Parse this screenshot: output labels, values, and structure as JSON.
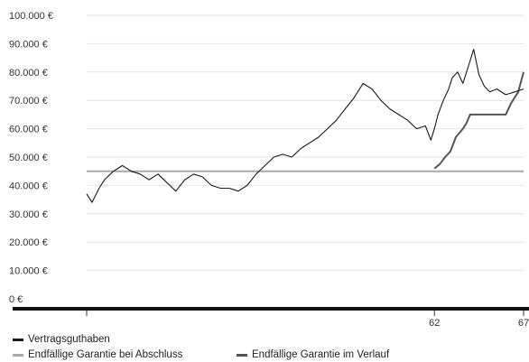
{
  "chart_data": {
    "type": "line",
    "ylim": [
      0,
      100000
    ],
    "y_ticks": [
      {
        "value": 100000,
        "label": "100.000 €"
      },
      {
        "value": 90000,
        "label": "90.000 €"
      },
      {
        "value": 80000,
        "label": "80.000 €"
      },
      {
        "value": 70000,
        "label": "70.000 €"
      },
      {
        "value": 60000,
        "label": "60.000 €"
      },
      {
        "value": 50000,
        "label": "50.000 €"
      },
      {
        "value": 40000,
        "label": "40.000 €"
      },
      {
        "value": 30000,
        "label": "30.000 €"
      },
      {
        "value": 20000,
        "label": "20.000 €"
      },
      {
        "value": 10000,
        "label": "10.000 €"
      },
      {
        "value": 0,
        "label": "0 €"
      }
    ],
    "xlim": [
      42.5,
      67
    ],
    "x_ticks": [
      {
        "value": 42.5,
        "label": ""
      },
      {
        "value": 62,
        "label": "62"
      },
      {
        "value": 67,
        "label": "67"
      }
    ],
    "grid": true,
    "legend_position": "bottom",
    "series": [
      {
        "name": "Vertragsguthaben",
        "color": "#1a1a1a",
        "x": [
          42.5,
          42.8,
          43.2,
          43.5,
          44.0,
          44.5,
          45.0,
          45.5,
          46.0,
          46.5,
          47.0,
          47.5,
          48.0,
          48.5,
          49.0,
          49.5,
          50.0,
          50.5,
          51.0,
          51.5,
          52.0,
          52.5,
          53.0,
          53.5,
          54.0,
          54.5,
          55.0,
          55.5,
          56.0,
          56.5,
          57.0,
          57.5,
          58.0,
          58.5,
          59.0,
          59.5,
          60.0,
          60.5,
          61.0,
          61.5,
          61.8,
          62.0,
          62.2,
          62.5,
          62.8,
          63.0,
          63.3,
          63.6,
          63.9,
          64.2,
          64.5,
          64.8,
          65.1,
          65.5,
          66.0,
          66.5,
          67.0
        ],
        "values": [
          37000,
          34000,
          39000,
          42000,
          45000,
          47000,
          45000,
          44000,
          42000,
          44000,
          41000,
          38000,
          42000,
          44000,
          43000,
          40000,
          39000,
          39000,
          38000,
          40000,
          44000,
          47000,
          50000,
          51000,
          50000,
          53000,
          55000,
          57000,
          60000,
          63000,
          67000,
          71000,
          76000,
          74000,
          70000,
          67000,
          65000,
          63000,
          60000,
          61000,
          56000,
          60000,
          65000,
          70000,
          74000,
          78000,
          80000,
          76000,
          82000,
          88000,
          79000,
          75000,
          73000,
          74000,
          72000,
          73000,
          74000
        ]
      },
      {
        "name": "Endfällige Garantie bei Abschluss",
        "color": "#aaaaaa",
        "x": [
          42.5,
          67.0
        ],
        "values": [
          45000,
          45000
        ]
      },
      {
        "name": "Endfällige Garantie im Verlauf",
        "color": "#555555",
        "x": [
          62.0,
          62.3,
          62.6,
          62.9,
          63.2,
          63.6,
          63.8,
          64.0,
          64.4,
          65.0,
          65.5,
          66.0,
          66.3,
          66.5,
          66.7,
          67.0
        ],
        "values": [
          46000,
          47500,
          50000,
          52000,
          57000,
          60000,
          62000,
          65000,
          65000,
          65000,
          65000,
          65000,
          69000,
          71000,
          73000,
          80000
        ]
      }
    ]
  },
  "legend": {
    "items": [
      {
        "label": "Vertragsguthaben",
        "color": "#1a1a1a"
      },
      {
        "label": "Endfällige Garantie bei Abschluss",
        "color": "#aaaaaa"
      },
      {
        "label": "Endfällige Garantie im Verlauf",
        "color": "#555555"
      }
    ]
  }
}
